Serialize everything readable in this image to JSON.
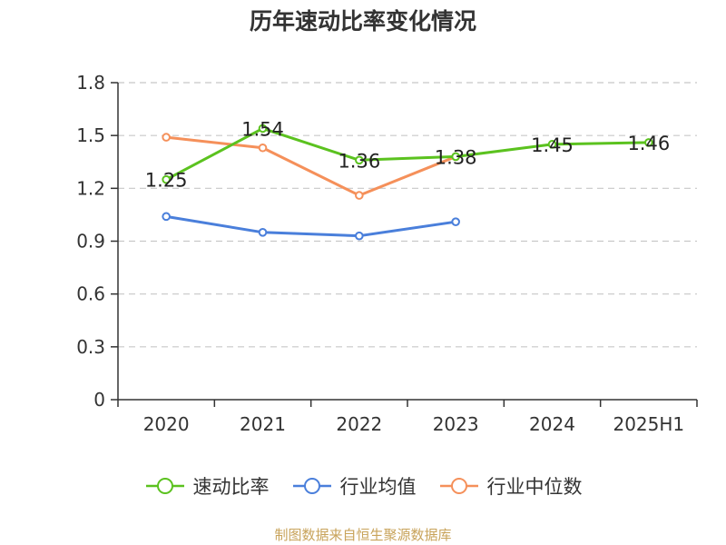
{
  "chart_data": {
    "type": "line",
    "title": "历年速动比率变化情况",
    "categories": [
      "2020",
      "2021",
      "2022",
      "2023",
      "2024",
      "2025H1"
    ],
    "ylim": [
      0,
      1.8
    ],
    "yticks": [
      "0",
      "0.3",
      "0.6",
      "0.9",
      "1.2",
      "1.5",
      "1.8"
    ],
    "grid": true,
    "legend_position": "bottom",
    "series": [
      {
        "name": "速动比率",
        "color": "#5bc21f",
        "values": [
          1.25,
          1.54,
          1.36,
          1.38,
          1.45,
          1.46
        ],
        "data_labels": [
          "1.25",
          "1.54",
          "1.36",
          "1.38",
          "1.45",
          "1.46"
        ]
      },
      {
        "name": "行业均值",
        "color": "#4a7fdb",
        "values": [
          1.04,
          0.95,
          0.93,
          1.01,
          null,
          null
        ]
      },
      {
        "name": "行业中位数",
        "color": "#f5905a",
        "values": [
          1.49,
          1.43,
          1.16,
          1.38,
          null,
          null
        ]
      }
    ]
  },
  "source_note": "制图数据来自恒生聚源数据库"
}
